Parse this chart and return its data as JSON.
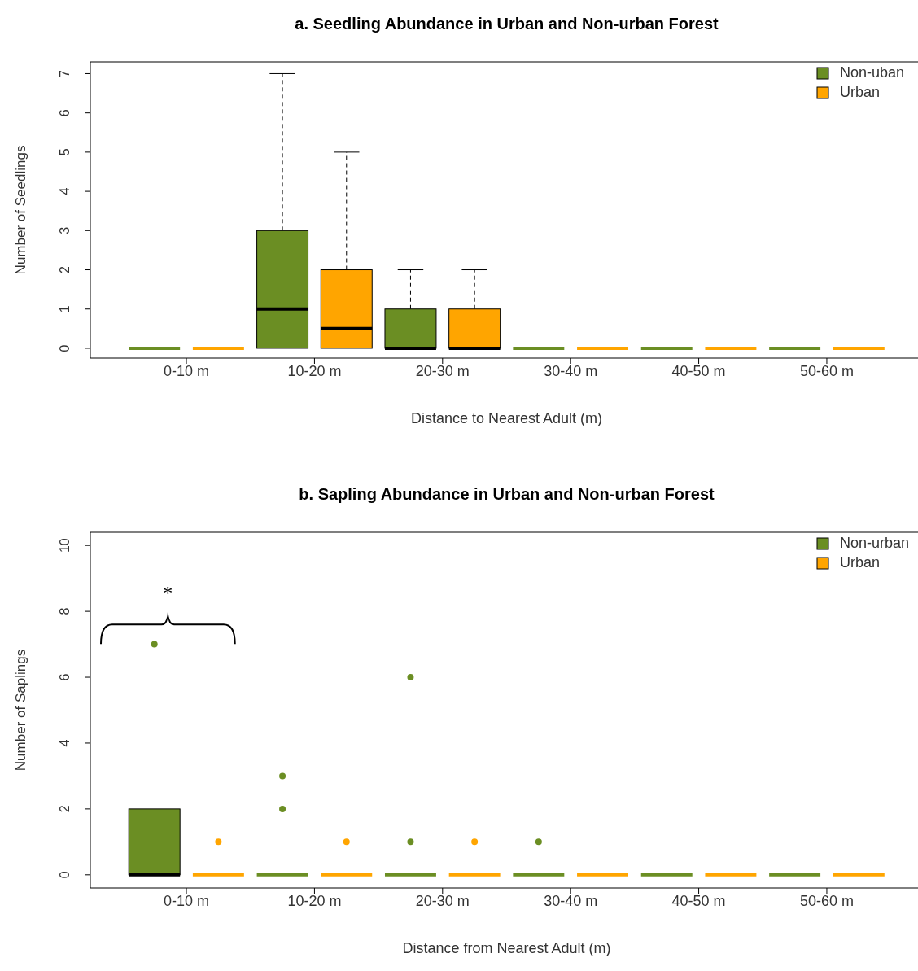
{
  "chart_data": [
    {
      "type": "box",
      "title": "a. Seedling Abundance in Urban and Non-urban Forest",
      "xlabel": "Distance to Nearest Adult (m)",
      "ylabel": "Number of Seedlings",
      "categories": [
        "0-10 m",
        "10-20 m",
        "20-30 m",
        "30-40 m",
        "40-50 m",
        "50-60 m"
      ],
      "ylim": [
        -0.25,
        7.3
      ],
      "yticks": [
        0,
        1,
        2,
        3,
        4,
        5,
        6,
        7
      ],
      "legend": "top right",
      "grid": false,
      "series": [
        {
          "name": "Non-uban",
          "color": "#6b8e23",
          "boxes": [
            {
              "low": 0,
              "q1": 0,
              "median": 0,
              "q3": 0,
              "high": 0
            },
            {
              "low": 0,
              "q1": 0,
              "median": 1,
              "q3": 3,
              "high": 7
            },
            {
              "low": 0,
              "q1": 0,
              "median": 0,
              "q3": 1,
              "high": 2
            },
            {
              "low": 0,
              "q1": 0,
              "median": 0,
              "q3": 0,
              "high": 0
            },
            {
              "low": 0,
              "q1": 0,
              "median": 0,
              "q3": 0,
              "high": 0
            },
            {
              "low": 0,
              "q1": 0,
              "median": 0,
              "q3": 0,
              "high": 0
            }
          ]
        },
        {
          "name": "Urban",
          "color": "#ffa500",
          "boxes": [
            {
              "low": 0,
              "q1": 0,
              "median": 0,
              "q3": 0,
              "high": 0
            },
            {
              "low": 0,
              "q1": 0,
              "median": 0.5,
              "q3": 2,
              "high": 5
            },
            {
              "low": 0,
              "q1": 0,
              "median": 0,
              "q3": 1,
              "high": 2
            },
            {
              "low": 0,
              "q1": 0,
              "median": 0,
              "q3": 0,
              "high": 0
            },
            {
              "low": 0,
              "q1": 0,
              "median": 0,
              "q3": 0,
              "high": 0
            },
            {
              "low": 0,
              "q1": 0,
              "median": 0,
              "q3": 0,
              "high": 0
            }
          ]
        }
      ]
    },
    {
      "type": "box",
      "title": "b. Sapling Abundance in Urban and Non-urban Forest",
      "xlabel": "Distance from Nearest Adult (m)",
      "ylabel": "Number of Saplings",
      "categories": [
        "0-10 m",
        "10-20 m",
        "20-30 m",
        "30-40 m",
        "40-50 m",
        "50-60 m"
      ],
      "ylim": [
        -0.4,
        10.4
      ],
      "yticks": [
        0,
        2,
        4,
        6,
        8,
        10
      ],
      "legend": "top right",
      "grid": false,
      "marker": "circle",
      "annotations": [
        "*"
      ],
      "series": [
        {
          "name": "Non-urban",
          "color": "#6b8e23",
          "boxes": [
            {
              "low": 0,
              "q1": 0,
              "median": 0,
              "q3": 2,
              "high": 2,
              "outliers": [
                7
              ]
            },
            {
              "low": 0,
              "q1": 0,
              "median": 0,
              "q3": 0,
              "high": 0,
              "outliers": [
                2,
                3
              ]
            },
            {
              "low": 0,
              "q1": 0,
              "median": 0,
              "q3": 0,
              "high": 0,
              "outliers": [
                1,
                6
              ]
            },
            {
              "low": 0,
              "q1": 0,
              "median": 0,
              "q3": 0,
              "high": 0,
              "outliers": [
                1
              ]
            },
            {
              "low": 0,
              "q1": 0,
              "median": 0,
              "q3": 0,
              "high": 0
            },
            {
              "low": 0,
              "q1": 0,
              "median": 0,
              "q3": 0,
              "high": 0
            }
          ]
        },
        {
          "name": "Urban",
          "color": "#ffa500",
          "boxes": [
            {
              "low": 0,
              "q1": 0,
              "median": 0,
              "q3": 0,
              "high": 0,
              "outliers": [
                1
              ]
            },
            {
              "low": 0,
              "q1": 0,
              "median": 0,
              "q3": 0,
              "high": 0,
              "outliers": [
                1
              ]
            },
            {
              "low": 0,
              "q1": 0,
              "median": 0,
              "q3": 0,
              "high": 0,
              "outliers": [
                1
              ]
            },
            {
              "low": 0,
              "q1": 0,
              "median": 0,
              "q3": 0,
              "high": 0
            },
            {
              "low": 0,
              "q1": 0,
              "median": 0,
              "q3": 0,
              "high": 0
            },
            {
              "low": 0,
              "q1": 0,
              "median": 0,
              "q3": 0,
              "high": 0
            }
          ]
        }
      ]
    }
  ]
}
